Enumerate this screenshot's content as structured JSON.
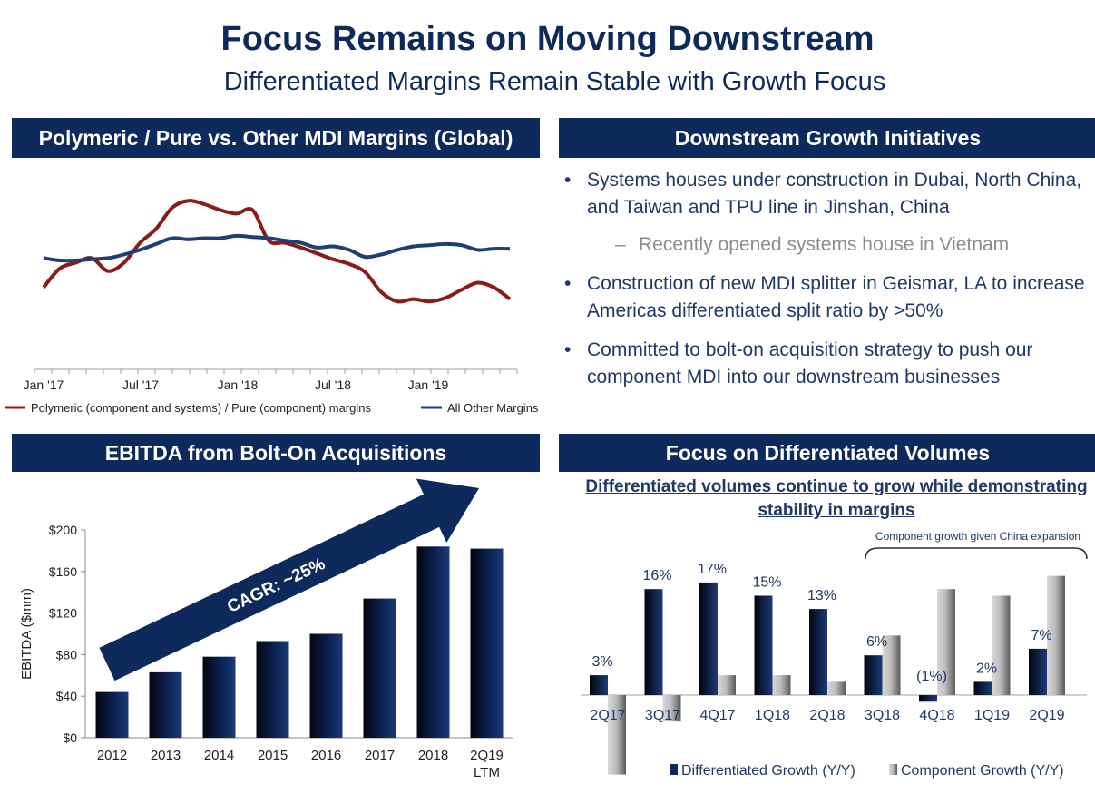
{
  "header": {
    "title": "Focus Remains on Moving Downstream",
    "subtitle": "Differentiated Margins Remain Stable with Growth Focus"
  },
  "banners": {
    "margins": "Polymeric / Pure vs. Other MDI Margins (Global)",
    "initiatives": "Downstream Growth Initiatives",
    "ebitda": "EBITDA from Bolt-On Acquisitions",
    "volumes": "Focus on Differentiated Volumes"
  },
  "initiatives": {
    "bullet_char": "•",
    "dash_char": "–",
    "items": [
      "Systems houses under construction in Dubai, North China, and Taiwan and TPU line in Jinshan, China",
      "Recently opened systems house in Vietnam",
      "Construction of new MDI splitter in Geismar, LA to increase Americas differentiated split ratio by >50%",
      "Committed to bolt-on acquisition strategy to push our component MDI into our downstream businesses"
    ]
  },
  "volumes_heading": "Differentiated volumes continue to grow while demonstrating stability in margins",
  "colors": {
    "navy": "#0e2a5c",
    "polymeric_line": "#8b1a1a",
    "other_line": "#1f3f73",
    "gray_bar": "#9a9a9a"
  },
  "chart_data": [
    {
      "id": "margins",
      "type": "line",
      "x_ticks": [
        "Jan '17",
        "Jul '17",
        "Jan '18",
        "Jul '18",
        "Jan '19"
      ],
      "y_axis_shown": false,
      "legend_position": "bottom",
      "series": [
        {
          "name": "Polymeric (component and systems) / Pure (component) margins",
          "color": "#8b1a1a",
          "values": [
            32,
            48,
            53,
            57,
            46,
            53,
            70,
            82,
            100,
            106,
            103,
            98,
            95,
            98,
            72,
            70,
            66,
            61,
            56,
            52,
            45,
            28,
            20,
            22,
            20,
            23,
            30,
            36,
            32,
            22
          ]
        },
        {
          "name": "All Other Margins",
          "color": "#1f3f73",
          "values": [
            57,
            55,
            55,
            56,
            57,
            60,
            64,
            69,
            74,
            73,
            74,
            74,
            76,
            75,
            74,
            72,
            70,
            66,
            67,
            64,
            58,
            60,
            64,
            67,
            68,
            69,
            68,
            64,
            65,
            65
          ]
        }
      ]
    },
    {
      "id": "ebitda",
      "type": "bar",
      "ylabel": "EBITDA  ($mm)",
      "ylim": [
        0,
        200
      ],
      "y_ticks": [
        "$0",
        "$40",
        "$80",
        "$120",
        "$160",
        "$200"
      ],
      "y_tick_values": [
        0,
        40,
        80,
        120,
        160,
        200
      ],
      "categories": [
        "2012",
        "2013",
        "2014",
        "2015",
        "2016",
        "2017",
        "2018",
        "2Q19"
      ],
      "category_sublabels": [
        "",
        "",
        "",
        "",
        "",
        "",
        "",
        "LTM"
      ],
      "values": [
        44,
        63,
        78,
        93,
        100,
        134,
        184,
        182
      ],
      "annotation": "CAGR: ~25%"
    },
    {
      "id": "volumes",
      "type": "bar",
      "y_axis_shown": false,
      "categories": [
        "2Q17",
        "3Q17",
        "4Q17",
        "1Q18",
        "2Q18",
        "3Q18",
        "4Q18",
        "1Q19",
        "2Q19"
      ],
      "series": [
        {
          "name": "Differentiated Growth (Y/Y)",
          "values": [
            3,
            16,
            17,
            15,
            13,
            6,
            -1,
            2,
            7
          ],
          "labels": [
            "3%",
            "16%",
            "17%",
            "15%",
            "13%",
            "6%",
            "(1%)",
            "2%",
            "7%"
          ]
        },
        {
          "name": "Component Growth (Y/Y)",
          "values": [
            -12,
            -4,
            3,
            3,
            2,
            9,
            16,
            15,
            18
          ]
        }
      ],
      "bracket_label": "Component growth given China expansion"
    }
  ]
}
